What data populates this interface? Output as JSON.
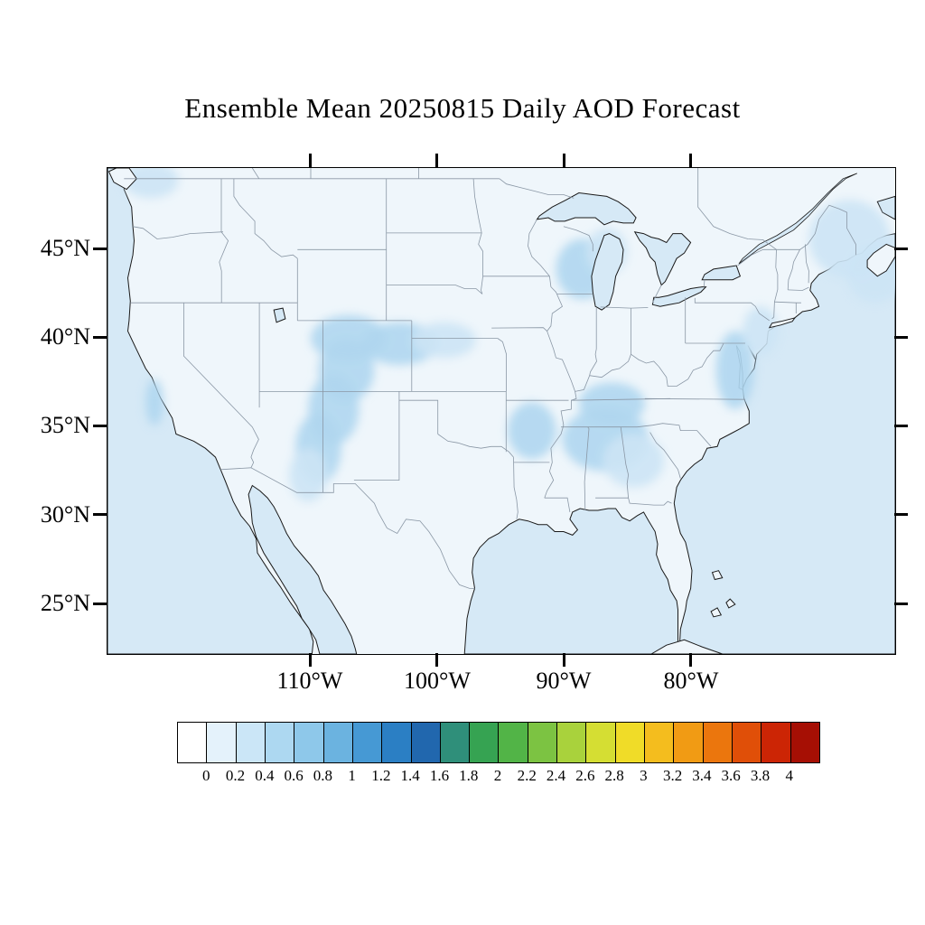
{
  "title": "Ensemble Mean 20250815 Daily AOD Forecast",
  "chart_data": {
    "type": "heatmap",
    "title": "Ensemble Mean 20250815 Daily AOD Forecast",
    "variable": "Daily AOD Forecast (Ensemble Mean)",
    "date": "20250815",
    "x_ticks": [
      "110°W",
      "100°W",
      "90°W",
      "80°W"
    ],
    "y_ticks": [
      "45°N",
      "40°N",
      "35°N",
      "30°N",
      "25°N"
    ],
    "map_extent": {
      "lon_min": -126,
      "lon_max": -64,
      "lat_min": 22.2,
      "lat_max": 49.6
    },
    "legend_position": "bottom",
    "grid": false,
    "colorbar": {
      "levels": [
        "0",
        "0.2",
        "0.4",
        "0.6",
        "0.8",
        "1",
        "1.2",
        "1.4",
        "1.6",
        "1.8",
        "2",
        "2.2",
        "2.4",
        "2.6",
        "2.8",
        "3",
        "3.2",
        "3.4",
        "3.6",
        "3.8",
        "4"
      ],
      "colors": [
        "#FFFFFF",
        "#E4F2FB",
        "#CBE6F7",
        "#ADD8F1",
        "#8EC8EA",
        "#6BB3E0",
        "#4699D4",
        "#2B7FC4",
        "#2167AE",
        "#2F8F7A",
        "#36A352",
        "#52B447",
        "#7CC342",
        "#A9D23C",
        "#D5DE33",
        "#F0DC28",
        "#F4BD1E",
        "#F19B14",
        "#EB760D",
        "#E04F08",
        "#CC2505",
        "#A60F04"
      ]
    },
    "field_summary": {
      "background_aod": 0.05,
      "features": [
        {
          "region": "Southern Rockies band (Colorado - New Mexico - SE Arizona)",
          "aod": 0.3
        },
        {
          "region": "Central Plains band near 40N (S Wyoming - Nebraska - Kansas)",
          "aod": 0.25
        },
        {
          "region": "Tennessee Valley / Southeast (KY - TN - AL - GA)",
          "aod": 0.3
        },
        {
          "region": "Arkansas / Lower Mississippi Valley",
          "aod": 0.25
        },
        {
          "region": "Wisconsin / Lake Michigan area",
          "aod": 0.25
        },
        {
          "region": "Mid-Atlantic coast (VA - MD - NJ)",
          "aod": 0.3
        },
        {
          "region": "Northern New England / Canadian Maritimes",
          "aod": 0.2
        },
        {
          "region": "Central California coast",
          "aod": 0.3
        },
        {
          "region": "Northwest Washington",
          "aod": 0.15
        }
      ]
    }
  },
  "colors": {
    "land": "#EFF6FB",
    "ocean": "#D6E9F6",
    "aod_patch": "#AFD6F0",
    "aod_patch_light": "#CCE4F5",
    "coastline": "#1a1a1a",
    "state_border": "#8A97A5"
  }
}
